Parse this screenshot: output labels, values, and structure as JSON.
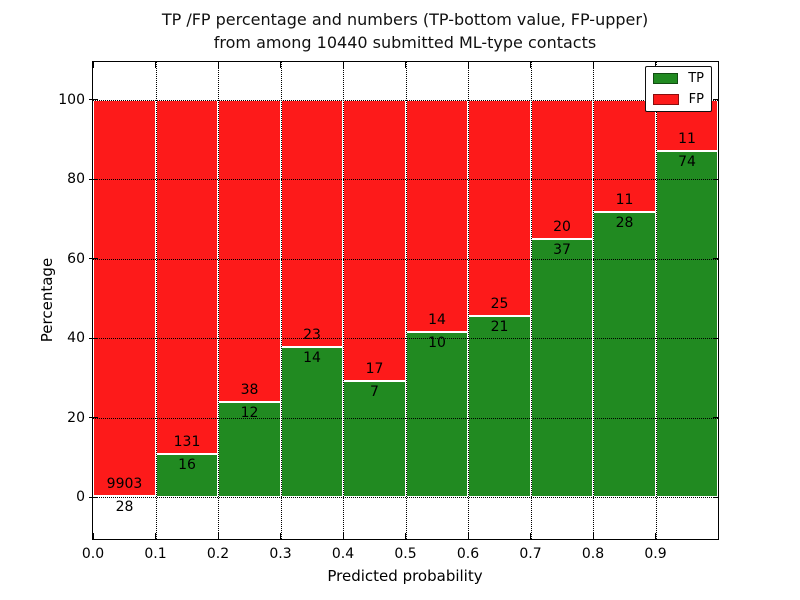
{
  "figure": {
    "title_lines": [
      "TP /FP percentage and numbers (TP-bottom value, FP-upper)",
      "from among 10440 submitted ML-type contacts"
    ]
  },
  "chart_data": {
    "type": "bar",
    "stacked": true,
    "title": "TP /FP percentage and numbers (TP-bottom value, FP-upper) from among 10440 submitted ML-type contacts",
    "xlabel": "Predicted probability",
    "ylabel": "Percentage",
    "total_contacts": 10440,
    "categories": [
      "0.0-0.1",
      "0.1-0.2",
      "0.2-0.3",
      "0.3-0.4",
      "0.4-0.5",
      "0.5-0.6",
      "0.6-0.7",
      "0.7-0.8",
      "0.8-0.9",
      "0.9-1.0"
    ],
    "bin_width": 0.1,
    "series": [
      {
        "name": "TP",
        "color": "#218a21",
        "counts": [
          28,
          16,
          12,
          14,
          7,
          10,
          21,
          37,
          28,
          74
        ],
        "pct": [
          0.28,
          10.88,
          24.0,
          37.84,
          29.17,
          41.67,
          45.65,
          64.91,
          71.79,
          87.06
        ]
      },
      {
        "name": "FP",
        "color": "#fd1a1a",
        "counts": [
          9903,
          131,
          38,
          23,
          17,
          14,
          25,
          20,
          11,
          11
        ],
        "pct": [
          99.72,
          89.12,
          76.0,
          62.16,
          70.83,
          58.33,
          54.35,
          35.09,
          28.21,
          12.94
        ]
      }
    ],
    "x_tick_labels": [
      "0.0",
      "0.1",
      "0.2",
      "0.3",
      "0.4",
      "0.5",
      "0.6",
      "0.7",
      "0.8",
      "0.9"
    ],
    "x_tick_values": [
      0.0,
      0.1,
      0.2,
      0.3,
      0.4,
      0.5,
      0.6,
      0.7,
      0.8,
      0.9
    ],
    "y_tick_labels": [
      "0",
      "20",
      "40",
      "60",
      "80",
      "100"
    ],
    "y_tick_values": [
      0,
      20,
      40,
      60,
      80,
      100
    ],
    "xlim": [
      0.0,
      1.0
    ],
    "ylim": [
      -10.5,
      109.5
    ],
    "grid": "dotted",
    "legend_position": "upper right",
    "legend": [
      {
        "label": "TP",
        "color": "#218a21"
      },
      {
        "label": "FP",
        "color": "#fd1a1a"
      }
    ]
  }
}
